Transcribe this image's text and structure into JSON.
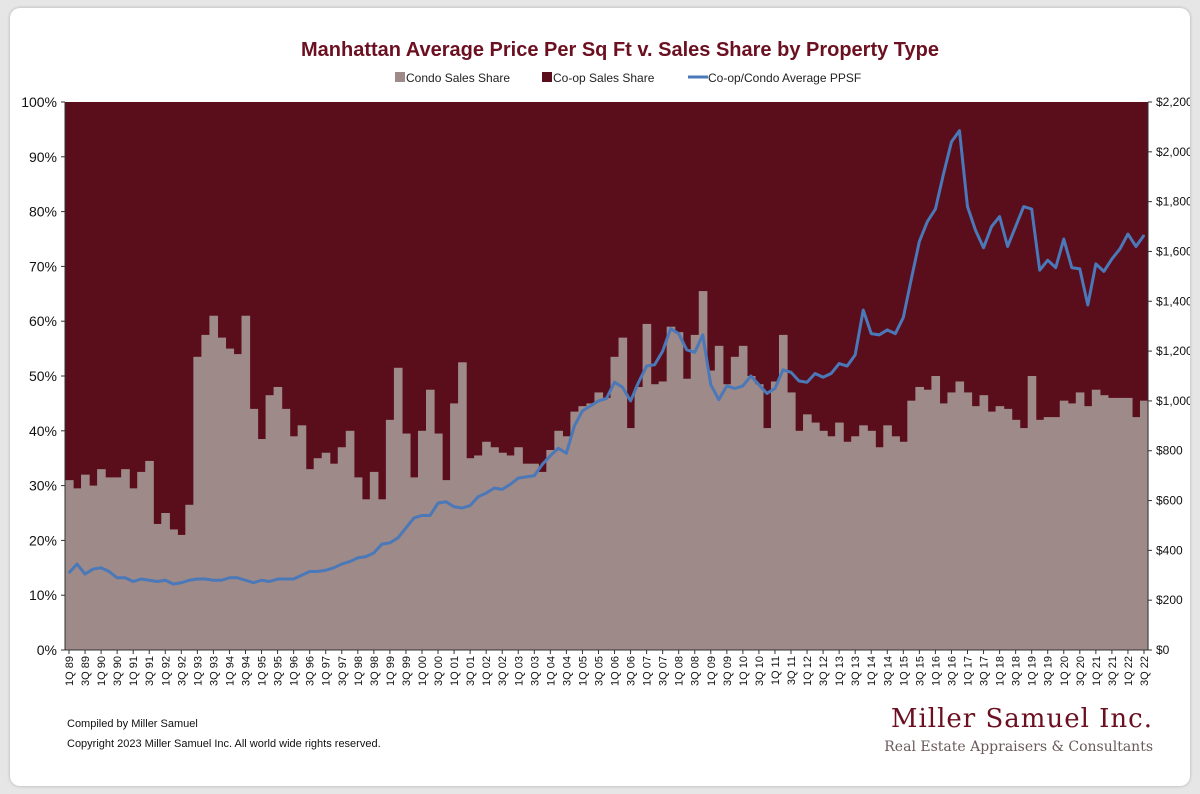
{
  "chart_data": {
    "type": "bar+line",
    "title": "Manhattan Average Price Per Sq Ft  v. Sales Share by Property Type",
    "legend": [
      "Condo Sales Share",
      "Co-op Sales Share",
      "Co-op/Condo Average PPSF"
    ],
    "legend_placement": "top",
    "colors": {
      "condo": "#9e8a88",
      "coop": "#5a0e1c",
      "ppsf": "#4a78b8",
      "title": "#6b1020"
    },
    "y_left": {
      "range": [
        0,
        100
      ],
      "ticks": [
        "0%",
        "10%",
        "20%",
        "30%",
        "40%",
        "50%",
        "60%",
        "70%",
        "80%",
        "90%",
        "100%"
      ]
    },
    "y_right": {
      "range": [
        0,
        2200
      ],
      "ticks": [
        "$0",
        "$200",
        "$400",
        "$600",
        "$800",
        "$1,000",
        "$1,200",
        "$1,400",
        "$1,600",
        "$1,800",
        "$2,000",
        "$2,200"
      ]
    },
    "x_start": "1Q 89",
    "x_tick_labels": [
      "1Q 89",
      "3Q 89",
      "1Q 90",
      "3Q 90",
      "1Q 91",
      "3Q 91",
      "1Q 92",
      "3Q 92",
      "1Q 93",
      "3Q 93",
      "1Q 94",
      "3Q 94",
      "1Q 95",
      "3Q 95",
      "1Q 96",
      "3Q 96",
      "1Q 97",
      "3Q 97",
      "1Q 98",
      "3Q 98",
      "1Q 99",
      "3Q 99",
      "1Q 00",
      "3Q 00",
      "1Q 01",
      "3Q 01",
      "1Q 02",
      "3Q 02",
      "1Q 03",
      "3Q 03",
      "1Q 04",
      "3Q 04",
      "1Q 05",
      "3Q 05",
      "1Q 06",
      "3Q 06",
      "1Q 07",
      "3Q 07",
      "1Q 08",
      "3Q 08",
      "1Q 09",
      "3Q 09",
      "1Q 10",
      "3Q 10",
      "1Q 11",
      "3Q 11",
      "1Q 12",
      "3Q 12",
      "1Q 13",
      "3Q 13",
      "1Q 14",
      "3Q 14",
      "1Q 15",
      "3Q 15",
      "1Q 16",
      "3Q 16",
      "1Q 17",
      "3Q 17",
      "1Q 18",
      "3Q 18",
      "1Q 19",
      "3Q 19",
      "1Q 20",
      "3Q 20",
      "1Q 21",
      "3Q 21",
      "1Q 22",
      "3Q 22"
    ],
    "condo_share": [
      31,
      29.5,
      32,
      30,
      33,
      31.5,
      31.5,
      33,
      29.5,
      32.5,
      34.5,
      23,
      25,
      22,
      21,
      26.5,
      53.5,
      57.5,
      61,
      57,
      55,
      54,
      61,
      44,
      38.5,
      46.5,
      48,
      44,
      39,
      41,
      33,
      35,
      36,
      34,
      37,
      40,
      31.5,
      27.5,
      32.5,
      27.5,
      42,
      51.5,
      39.5,
      31.5,
      40,
      47.5,
      39.5,
      31,
      45,
      52.5,
      35,
      35.5,
      38,
      37,
      36,
      35.5,
      37,
      34,
      34,
      32.5,
      36.5,
      40,
      39,
      43.5,
      44.5,
      45,
      47,
      46,
      53.5,
      57,
      40.5,
      48,
      59.5,
      48.5,
      49,
      59,
      58,
      49.5,
      57.5,
      65.5,
      51,
      55.5,
      48.5,
      53.5,
      55.5,
      50,
      48.5,
      40.5,
      49,
      57.5,
      47,
      40,
      43,
      41.5,
      40,
      39,
      41.5,
      38,
      39,
      41,
      40,
      37,
      41,
      39,
      38,
      45.5,
      48,
      47.5,
      50,
      45,
      47,
      49,
      47,
      44.5,
      46.5,
      43.5,
      44.5,
      44,
      42,
      40.5,
      50,
      42,
      42.5,
      42.5,
      45.5,
      45,
      47,
      44.5,
      47.5,
      46.5,
      46,
      46,
      46,
      42.5,
      45.5
    ],
    "coop_share_note": "Co-op share = 100% - condo share",
    "ppsf": [
      310,
      345,
      305,
      325,
      330,
      315,
      290,
      290,
      275,
      285,
      280,
      275,
      280,
      265,
      270,
      280,
      285,
      285,
      280,
      280,
      290,
      290,
      280,
      270,
      280,
      275,
      285,
      285,
      285,
      300,
      315,
      315,
      320,
      330,
      345,
      355,
      370,
      375,
      390,
      425,
      430,
      450,
      490,
      530,
      540,
      540,
      590,
      595,
      575,
      570,
      580,
      615,
      630,
      650,
      645,
      665,
      690,
      695,
      700,
      745,
      780,
      810,
      790,
      900,
      960,
      980,
      1000,
      1010,
      1075,
      1055,
      1000,
      1075,
      1140,
      1145,
      1200,
      1290,
      1270,
      1205,
      1195,
      1265,
      1065,
      1005,
      1060,
      1050,
      1060,
      1100,
      1065,
      1030,
      1050,
      1125,
      1115,
      1080,
      1075,
      1110,
      1095,
      1110,
      1150,
      1140,
      1185,
      1365,
      1270,
      1265,
      1285,
      1270,
      1335,
      1490,
      1640,
      1720,
      1770,
      1910,
      2040,
      2085,
      1780,
      1685,
      1615,
      1700,
      1740,
      1620,
      1700,
      1780,
      1770,
      1525,
      1565,
      1535,
      1650,
      1535,
      1530,
      1385,
      1550,
      1520,
      1570,
      1610,
      1670,
      1620,
      1665
    ]
  },
  "footer": {
    "compiled": "Compiled by Miller Samuel",
    "copyright": "Copyright 2023 Miller Samuel Inc.  All world wide rights reserved.",
    "logo_name": "Miller Samuel Inc.",
    "logo_tagline": "Real Estate Appraisers & Consultants"
  }
}
